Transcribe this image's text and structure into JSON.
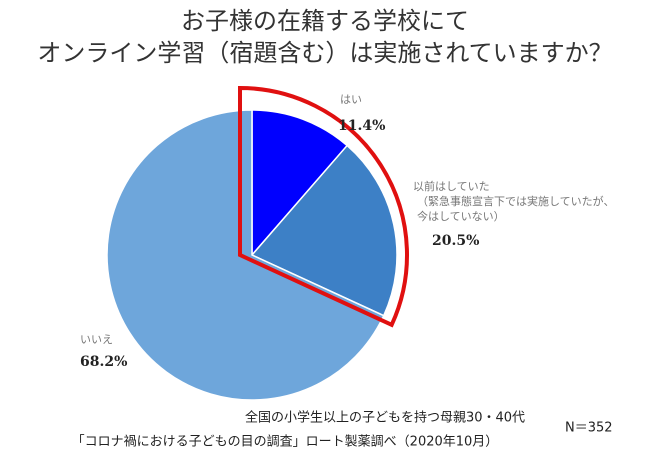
{
  "chart_data": {
    "type": "pie",
    "title": [
      "お子様の在籍する学校にて",
      "オンライン学習（宿題含む）は実施されていますか？"
    ],
    "categories": [
      [
        "はい"
      ],
      [
        "以前はしていた",
        "（緊急事態宣言下では実施していたが、",
        "今はしていない）"
      ],
      [
        "いいえ"
      ]
    ],
    "values": [
      11.4,
      20.5,
      68.2
    ],
    "value_labels": [
      "11.4%",
      "20.5%",
      "68.2%"
    ],
    "colors": [
      "#0000ff",
      "#3d80c6",
      "#6ea6db"
    ],
    "highlight_color": "#e01010",
    "notes": [
      "全国の小学生以上の子どもを持つ母親30・40代",
      "N＝352",
      "「コロナ禍における子どもの目の調査」ロート製薬調べ（2020年10月）"
    ]
  }
}
